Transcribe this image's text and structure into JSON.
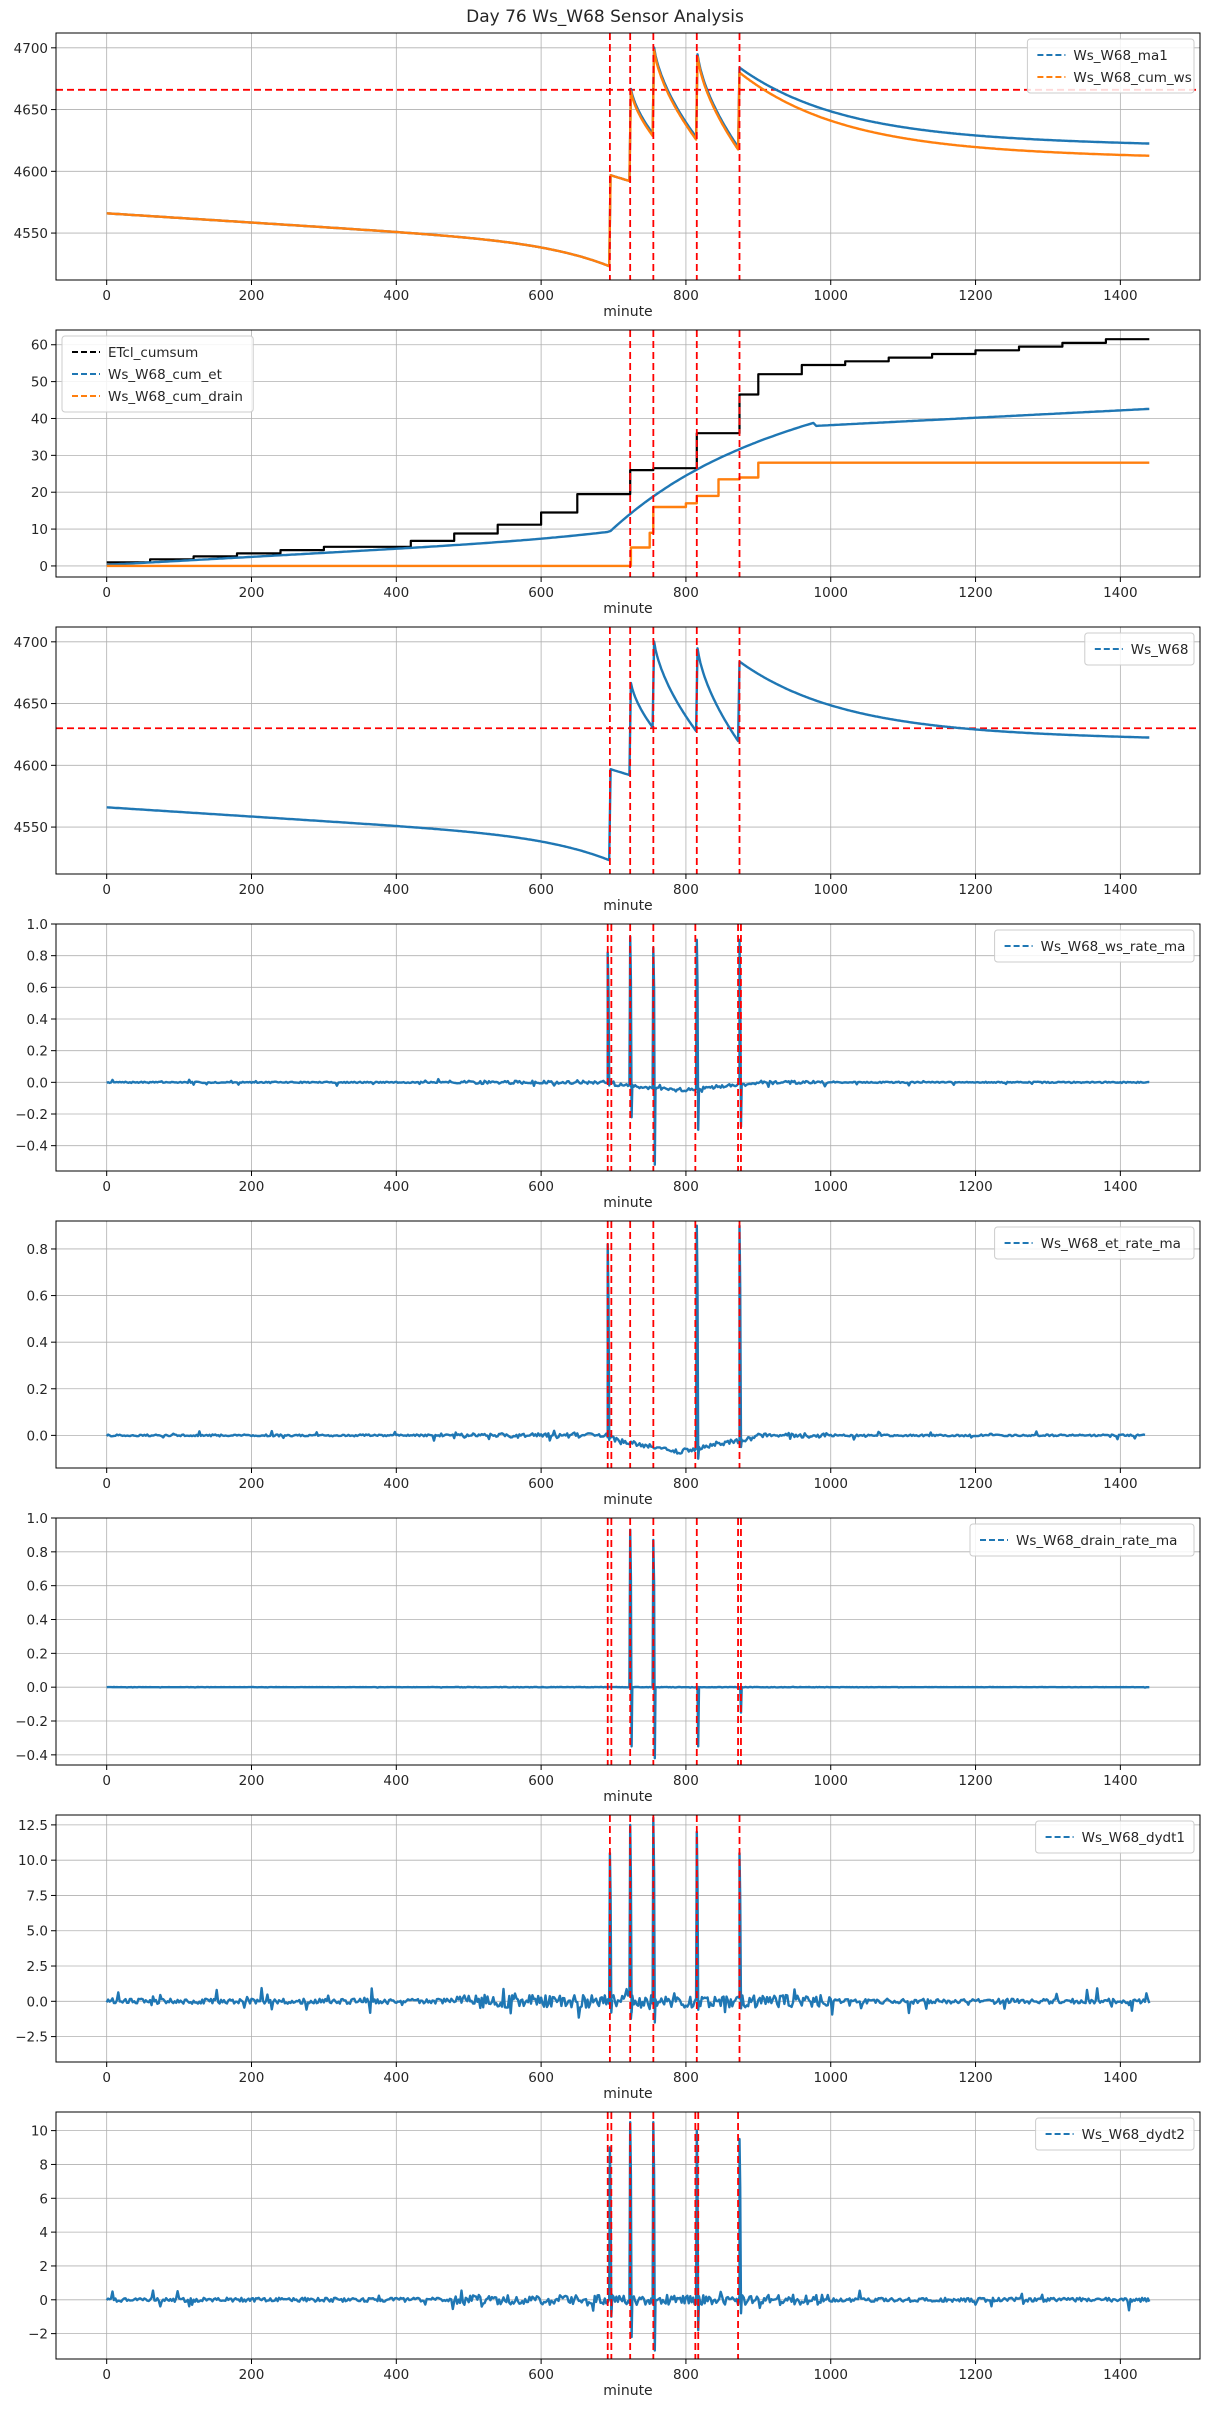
{
  "figure": {
    "title": "Day 76 Ws_W68 Sensor Analysis"
  },
  "colors": {
    "blue": "#1f77b4",
    "orange": "#ff7f0e",
    "black": "#000000",
    "red": "#ff0000",
    "grid": "#b0b0b0"
  },
  "chart_data": [
    {
      "type": "line",
      "xlabel": "minute",
      "xlim": [
        -70,
        1510
      ],
      "ylim": [
        4512,
        4712
      ],
      "xticks": [
        0,
        200,
        400,
        600,
        800,
        1000,
        1200,
        1400
      ],
      "yticks": [
        4550,
        4600,
        4650,
        4700
      ],
      "legend": "top-right",
      "threshold": 4666,
      "event_lines": [
        695,
        723,
        755,
        815,
        874
      ],
      "series": [
        {
          "name": "Ws_W68_ma1",
          "color": "blue",
          "profile": "ws_ma"
        },
        {
          "name": "Ws_W68_cum_ws",
          "color": "orange",
          "profile": "ws_cum"
        }
      ]
    },
    {
      "type": "line",
      "xlabel": "minute",
      "xlim": [
        -70,
        1510
      ],
      "ylim": [
        -3,
        64
      ],
      "xticks": [
        0,
        200,
        400,
        600,
        800,
        1000,
        1200,
        1400
      ],
      "yticks": [
        0,
        10,
        20,
        30,
        40,
        50,
        60
      ],
      "legend": "top-left",
      "event_lines": [
        723,
        755,
        815,
        874
      ],
      "series": [
        {
          "name": "ETcl_cumsum",
          "color": "black",
          "profile": "etcl"
        },
        {
          "name": "Ws_W68_cum_et",
          "color": "blue",
          "profile": "cum_et"
        },
        {
          "name": "Ws_W68_cum_drain",
          "color": "orange",
          "profile": "cum_drain"
        }
      ]
    },
    {
      "type": "line",
      "xlabel": "minute",
      "xlim": [
        -70,
        1510
      ],
      "ylim": [
        4512,
        4712
      ],
      "xticks": [
        0,
        200,
        400,
        600,
        800,
        1000,
        1200,
        1400
      ],
      "yticks": [
        4550,
        4600,
        4650,
        4700
      ],
      "legend": "top-right",
      "threshold": 4630,
      "event_lines": [
        695,
        723,
        755,
        815,
        874
      ],
      "series": [
        {
          "name": "Ws_W68",
          "color": "blue",
          "profile": "ws_raw"
        }
      ]
    },
    {
      "type": "line",
      "xlabel": "minute",
      "xlim": [
        -70,
        1510
      ],
      "ylim": [
        -0.56,
        1.0
      ],
      "xticks": [
        0,
        200,
        400,
        600,
        800,
        1000,
        1200,
        1400
      ],
      "yticks": [
        -0.4,
        -0.2,
        0.0,
        0.2,
        0.4,
        0.6,
        0.8,
        1.0
      ],
      "legend": "top-right",
      "event_lines": [
        692,
        697,
        723,
        755,
        813,
        872,
        876
      ],
      "series": [
        {
          "name": "Ws_W68_ws_rate_ma",
          "color": "blue",
          "profile": "ws_rate"
        }
      ]
    },
    {
      "type": "line",
      "xlabel": "minute",
      "xlim": [
        -70,
        1510
      ],
      "ylim": [
        -0.14,
        0.92
      ],
      "xticks": [
        0,
        200,
        400,
        600,
        800,
        1000,
        1200,
        1400
      ],
      "yticks": [
        0.0,
        0.2,
        0.4,
        0.6,
        0.8
      ],
      "legend": "top-right",
      "event_lines": [
        692,
        697,
        723,
        755,
        813,
        874
      ],
      "series": [
        {
          "name": "Ws_W68_et_rate_ma",
          "color": "blue",
          "profile": "et_rate"
        }
      ]
    },
    {
      "type": "line",
      "xlabel": "minute",
      "xlim": [
        -70,
        1510
      ],
      "ylim": [
        -0.46,
        1.0
      ],
      "xticks": [
        0,
        200,
        400,
        600,
        800,
        1000,
        1200,
        1400
      ],
      "yticks": [
        -0.4,
        -0.2,
        0.0,
        0.2,
        0.4,
        0.6,
        0.8,
        1.0
      ],
      "legend": "top-right",
      "event_lines": [
        692,
        697,
        723,
        755,
        815,
        872,
        876
      ],
      "series": [
        {
          "name": "Ws_W68_drain_rate_ma",
          "color": "blue",
          "profile": "drain_rate"
        }
      ]
    },
    {
      "type": "line",
      "xlabel": "minute",
      "xlim": [
        -70,
        1510
      ],
      "ylim": [
        -4.3,
        13.2
      ],
      "xticks": [
        0,
        200,
        400,
        600,
        800,
        1000,
        1200,
        1400
      ],
      "yticks": [
        -2.5,
        0.0,
        2.5,
        5.0,
        7.5,
        10.0,
        12.5
      ],
      "legend": "top-right",
      "event_lines": [
        695,
        723,
        755,
        815,
        874
      ],
      "series": [
        {
          "name": "Ws_W68_dydt1",
          "color": "blue",
          "profile": "dydt1"
        }
      ]
    },
    {
      "type": "line",
      "xlabel": "minute",
      "xlim": [
        -70,
        1510
      ],
      "ylim": [
        -3.5,
        11.1
      ],
      "xticks": [
        0,
        200,
        400,
        600,
        800,
        1000,
        1200,
        1400
      ],
      "yticks": [
        -2,
        0,
        2,
        4,
        6,
        8,
        10
      ],
      "legend": "top-right",
      "event_lines": [
        692,
        697,
        723,
        755,
        813,
        817,
        872
      ],
      "series": [
        {
          "name": "Ws_W68_dydt2",
          "color": "blue",
          "profile": "dydt2"
        }
      ]
    }
  ]
}
